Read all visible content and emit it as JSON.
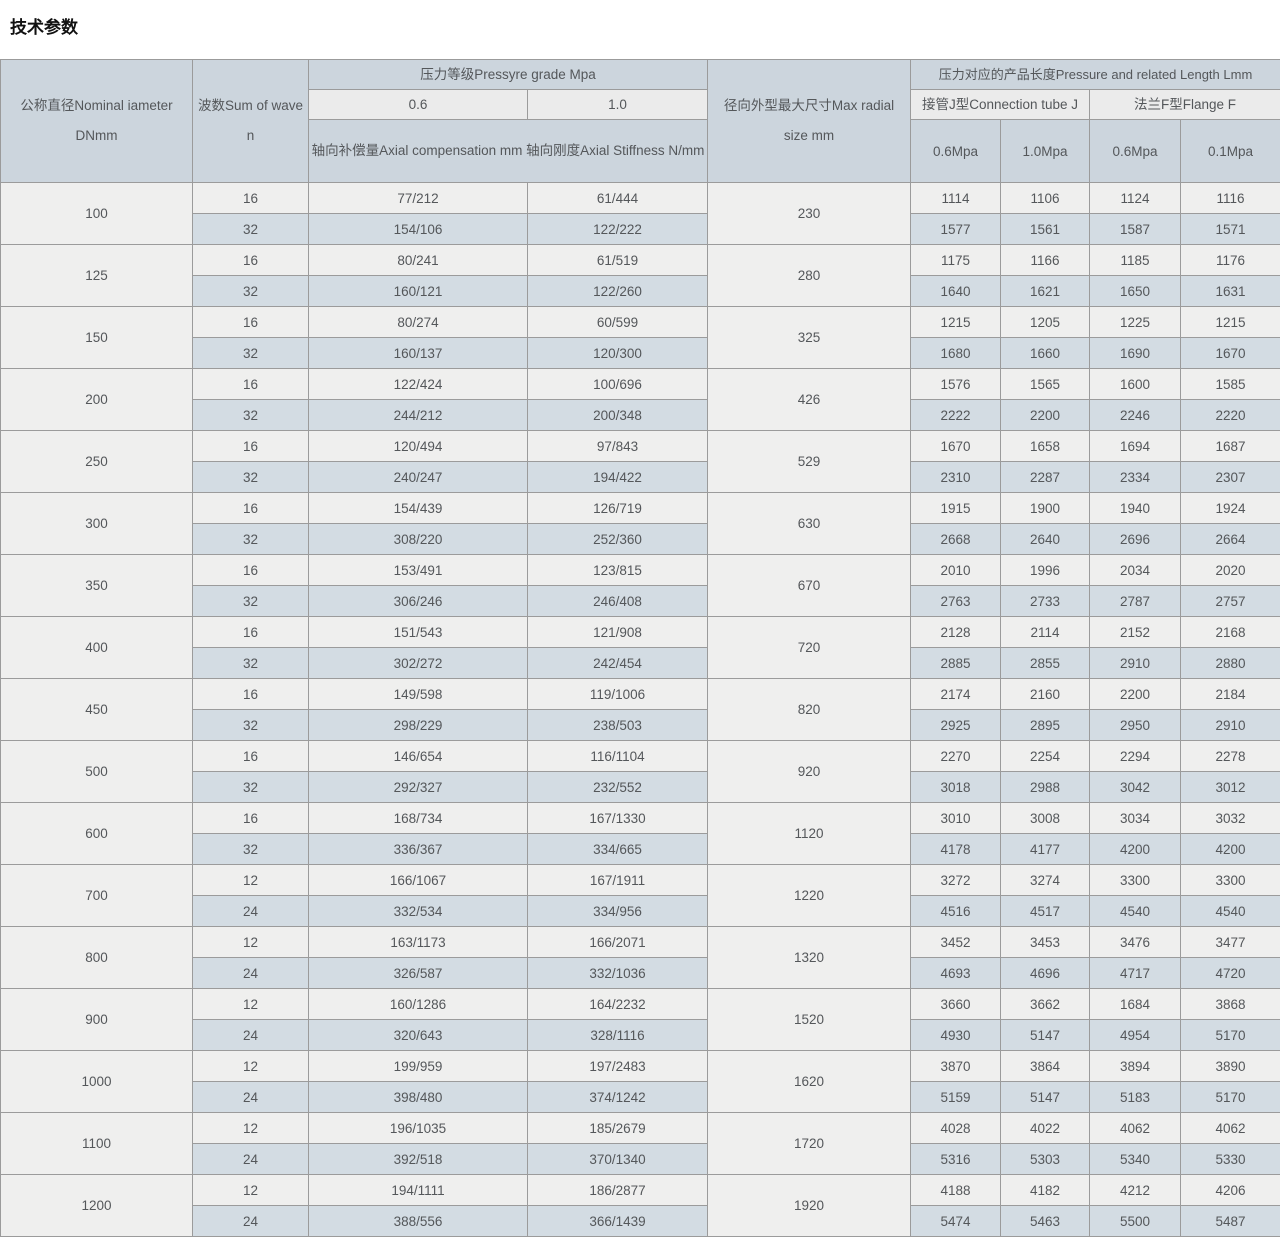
{
  "page": {
    "title": "技术参数"
  },
  "table": {
    "header": {
      "col_dn": "公称直径Nominal iameter DNmm",
      "col_wave": "波数Sum of wave n",
      "pressure_group": "压力等级Pressyre grade Mpa",
      "pressure_cols": [
        "0.6",
        "1.0"
      ],
      "axial_label": "轴向补偿量Axial compensation mm 轴向刚度Axial Stiffness N/mm",
      "col_radial": "径向外型最大尺寸Max radial size mm",
      "length_group": "压力对应的产品长度Pressure and related Length Lmm",
      "tube_group": "接管J型Connection tube J",
      "flange_group": "法兰F型Flange F",
      "length_cols": [
        "0.6Mpa",
        "1.0Mpa",
        "0.6Mpa",
        "0.1Mpa"
      ]
    },
    "rows": [
      {
        "dn": "100",
        "radial": "230",
        "sub": [
          {
            "wave": "16",
            "a06": "77/212",
            "a10": "61/444",
            "len": [
              "1114",
              "1106",
              "1124",
              "1116"
            ]
          },
          {
            "wave": "32",
            "a06": "154/106",
            "a10": "122/222",
            "len": [
              "1577",
              "1561",
              "1587",
              "1571"
            ]
          }
        ]
      },
      {
        "dn": "125",
        "radial": "280",
        "sub": [
          {
            "wave": "16",
            "a06": "80/241",
            "a10": "61/519",
            "len": [
              "1175",
              "1166",
              "1185",
              "1176"
            ]
          },
          {
            "wave": "32",
            "a06": "160/121",
            "a10": "122/260",
            "len": [
              "1640",
              "1621",
              "1650",
              "1631"
            ]
          }
        ]
      },
      {
        "dn": "150",
        "radial": "325",
        "sub": [
          {
            "wave": "16",
            "a06": "80/274",
            "a10": "60/599",
            "len": [
              "1215",
              "1205",
              "1225",
              "1215"
            ]
          },
          {
            "wave": "32",
            "a06": "160/137",
            "a10": "120/300",
            "len": [
              "1680",
              "1660",
              "1690",
              "1670"
            ]
          }
        ]
      },
      {
        "dn": "200",
        "radial": "426",
        "sub": [
          {
            "wave": "16",
            "a06": "122/424",
            "a10": "100/696",
            "len": [
              "1576",
              "1565",
              "1600",
              "1585"
            ]
          },
          {
            "wave": "32",
            "a06": "244/212",
            "a10": "200/348",
            "len": [
              "2222",
              "2200",
              "2246",
              "2220"
            ]
          }
        ]
      },
      {
        "dn": "250",
        "radial": "529",
        "sub": [
          {
            "wave": "16",
            "a06": "120/494",
            "a10": "97/843",
            "len": [
              "1670",
              "1658",
              "1694",
              "1687"
            ]
          },
          {
            "wave": "32",
            "a06": "240/247",
            "a10": "194/422",
            "len": [
              "2310",
              "2287",
              "2334",
              "2307"
            ]
          }
        ]
      },
      {
        "dn": "300",
        "radial": "630",
        "sub": [
          {
            "wave": "16",
            "a06": "154/439",
            "a10": "126/719",
            "len": [
              "1915",
              "1900",
              "1940",
              "1924"
            ]
          },
          {
            "wave": "32",
            "a06": "308/220",
            "a10": "252/360",
            "len": [
              "2668",
              "2640",
              "2696",
              "2664"
            ]
          }
        ]
      },
      {
        "dn": "350",
        "radial": "670",
        "sub": [
          {
            "wave": "16",
            "a06": "153/491",
            "a10": "123/815",
            "len": [
              "2010",
              "1996",
              "2034",
              "2020"
            ]
          },
          {
            "wave": "32",
            "a06": "306/246",
            "a10": "246/408",
            "len": [
              "2763",
              "2733",
              "2787",
              "2757"
            ]
          }
        ]
      },
      {
        "dn": "400",
        "radial": "720",
        "sub": [
          {
            "wave": "16",
            "a06": "151/543",
            "a10": "121/908",
            "len": [
              "2128",
              "2114",
              "2152",
              "2168"
            ]
          },
          {
            "wave": "32",
            "a06": "302/272",
            "a10": "242/454",
            "len": [
              "2885",
              "2855",
              "2910",
              "2880"
            ]
          }
        ]
      },
      {
        "dn": "450",
        "radial": "820",
        "sub": [
          {
            "wave": "16",
            "a06": "149/598",
            "a10": "119/1006",
            "len": [
              "2174",
              "2160",
              "2200",
              "2184"
            ]
          },
          {
            "wave": "32",
            "a06": "298/229",
            "a10": "238/503",
            "len": [
              "2925",
              "2895",
              "2950",
              "2910"
            ]
          }
        ]
      },
      {
        "dn": "500",
        "radial": "920",
        "sub": [
          {
            "wave": "16",
            "a06": "146/654",
            "a10": "116/1104",
            "len": [
              "2270",
              "2254",
              "2294",
              "2278"
            ]
          },
          {
            "wave": "32",
            "a06": "292/327",
            "a10": "232/552",
            "len": [
              "3018",
              "2988",
              "3042",
              "3012"
            ]
          }
        ]
      },
      {
        "dn": "600",
        "radial": "1120",
        "sub": [
          {
            "wave": "16",
            "a06": "168/734",
            "a10": "167/1330",
            "len": [
              "3010",
              "3008",
              "3034",
              "3032"
            ]
          },
          {
            "wave": "32",
            "a06": "336/367",
            "a10": "334/665",
            "len": [
              "4178",
              "4177",
              "4200",
              "4200"
            ]
          }
        ]
      },
      {
        "dn": "700",
        "radial": "1220",
        "sub": [
          {
            "wave": "12",
            "a06": "166/1067",
            "a10": "167/1911",
            "len": [
              "3272",
              "3274",
              "3300",
              "3300"
            ]
          },
          {
            "wave": "24",
            "a06": "332/534",
            "a10": "334/956",
            "len": [
              "4516",
              "4517",
              "4540",
              "4540"
            ]
          }
        ]
      },
      {
        "dn": "800",
        "radial": "1320",
        "sub": [
          {
            "wave": "12",
            "a06": "163/1173",
            "a10": "166/2071",
            "len": [
              "3452",
              "3453",
              "3476",
              "3477"
            ]
          },
          {
            "wave": "24",
            "a06": "326/587",
            "a10": "332/1036",
            "len": [
              "4693",
              "4696",
              "4717",
              "4720"
            ]
          }
        ]
      },
      {
        "dn": "900",
        "radial": "1520",
        "sub": [
          {
            "wave": "12",
            "a06": "160/1286",
            "a10": "164/2232",
            "len": [
              "3660",
              "3662",
              "1684",
              "3868"
            ]
          },
          {
            "wave": "24",
            "a06": "320/643",
            "a10": "328/1116",
            "len": [
              "4930",
              "5147",
              "4954",
              "5170"
            ]
          }
        ]
      },
      {
        "dn": "1000",
        "radial": "1620",
        "sub": [
          {
            "wave": "12",
            "a06": "199/959",
            "a10": "197/2483",
            "len": [
              "3870",
              "3864",
              "3894",
              "3890"
            ]
          },
          {
            "wave": "24",
            "a06": "398/480",
            "a10": "374/1242",
            "len": [
              "5159",
              "5147",
              "5183",
              "5170"
            ]
          }
        ]
      },
      {
        "dn": "1100",
        "radial": "1720",
        "sub": [
          {
            "wave": "12",
            "a06": "196/1035",
            "a10": "185/2679",
            "len": [
              "4028",
              "4022",
              "4062",
              "4062"
            ]
          },
          {
            "wave": "24",
            "a06": "392/518",
            "a10": "370/1340",
            "len": [
              "5316",
              "5303",
              "5340",
              "5330"
            ]
          }
        ]
      },
      {
        "dn": "1200",
        "radial": "1920",
        "sub": [
          {
            "wave": "12",
            "a06": "194/1111",
            "a10": "186/2877",
            "len": [
              "4188",
              "4182",
              "4212",
              "4206"
            ]
          },
          {
            "wave": "24",
            "a06": "388/556",
            "a10": "366/1439",
            "len": [
              "5474",
              "5463",
              "5500",
              "5487"
            ]
          }
        ]
      }
    ]
  }
}
